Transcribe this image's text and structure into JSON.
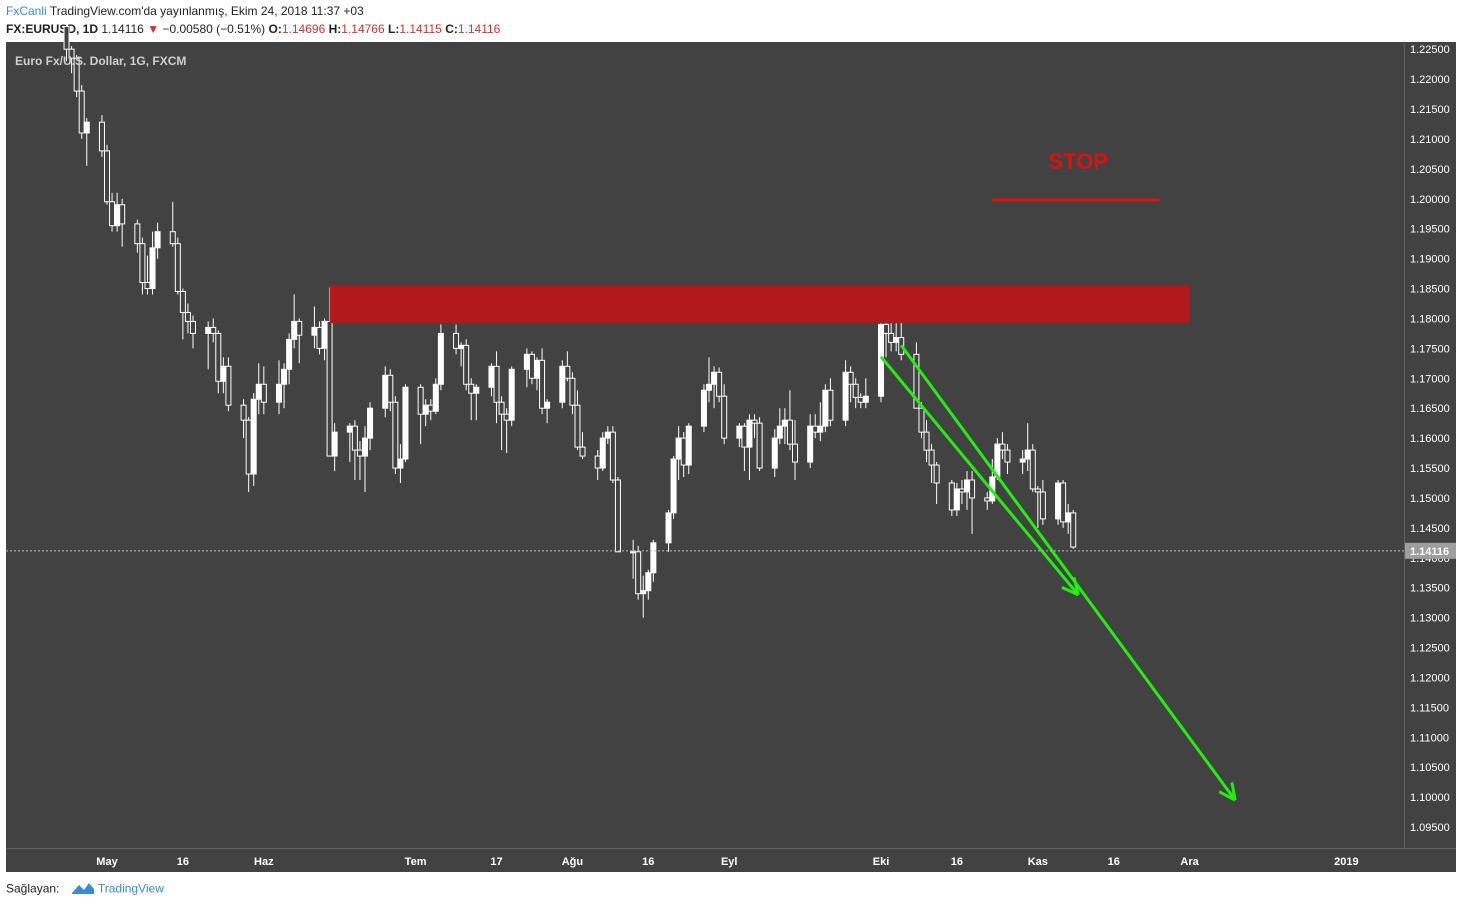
{
  "header": {
    "brand": "FxCanli",
    "published": "TradingView.com'da yayınlanmış, Ekim 24, 2018 11:37 +03",
    "symbol": "FX:EURUSD, 1D",
    "last": "1.14116",
    "change": "−0.00580 (−0.51%)",
    "o_label": "O:",
    "o_value": "1.14696",
    "h_label": "H:",
    "h_value": "1.14766",
    "l_label": "L:",
    "l_value": "1.14115",
    "c_label": "C:",
    "c_value": "1.14116"
  },
  "footer": {
    "provided_by": "Sağlayan:",
    "tv_label": "TradingView"
  },
  "colors": {
    "background": "#424242",
    "candle": "#ffffff",
    "resistance_zone": "#b3181a",
    "stop": "#e01010",
    "arrow": "#22ee11",
    "axis_text": "#222222"
  },
  "chart_data": {
    "type": "candlestick",
    "title": "Euro Fx/U.S. Dollar, 1G, FXCM",
    "ylim": [
      1.0915,
      1.2262
    ],
    "x_axis_ticks": [
      {
        "label": "May",
        "date": "2018-05-01"
      },
      {
        "label": "16",
        "date": "2018-05-16"
      },
      {
        "label": "Haz",
        "date": "2018-06-01"
      },
      {
        "label": "Tem",
        "date": "2018-07-01"
      },
      {
        "label": "17",
        "date": "2018-07-17"
      },
      {
        "label": "Ağu",
        "date": "2018-08-01"
      },
      {
        "label": "16",
        "date": "2018-08-16"
      },
      {
        "label": "Eyl",
        "date": "2018-09-01"
      },
      {
        "label": "Eki",
        "date": "2018-10-01"
      },
      {
        "label": "16",
        "date": "2018-10-16"
      },
      {
        "label": "Kas",
        "date": "2018-11-01"
      },
      {
        "label": "16",
        "date": "2018-11-16"
      },
      {
        "label": "Ara",
        "date": "2018-12-01"
      },
      {
        "label": "2019",
        "date": "2019-01-01"
      }
    ],
    "y_axis_ticks": [
      "1.22500",
      "1.22000",
      "1.21500",
      "1.21000",
      "1.20500",
      "1.20000",
      "1.19500",
      "1.19000",
      "1.18500",
      "1.18000",
      "1.17500",
      "1.17000",
      "1.16500",
      "1.16000",
      "1.15500",
      "1.15000",
      "1.14500",
      "1.14000",
      "1.13500",
      "1.13000",
      "1.12500",
      "1.12000",
      "1.11500",
      "1.11000",
      "1.10500",
      "1.10000",
      "1.09500"
    ],
    "last_price": "1.14116",
    "candles": [
      [
        "2018-04-23",
        1.2288,
        1.2302,
        1.223,
        1.225
      ],
      [
        "2018-04-24",
        1.225,
        1.2255,
        1.221,
        1.2235
      ],
      [
        "2018-04-25",
        1.2235,
        1.224,
        1.217,
        1.218
      ],
      [
        "2018-04-26",
        1.218,
        1.219,
        1.21,
        1.211
      ],
      [
        "2018-04-27",
        1.211,
        1.2135,
        1.2055,
        1.2128
      ],
      [
        "2018-04-30",
        1.2128,
        1.214,
        1.207,
        1.208
      ],
      [
        "2018-05-01",
        1.208,
        1.209,
        1.199,
        1.1995
      ],
      [
        "2018-05-02",
        1.1995,
        1.201,
        1.1945,
        1.1955
      ],
      [
        "2018-05-03",
        1.1955,
        1.201,
        1.1945,
        1.199
      ],
      [
        "2018-05-04",
        1.199,
        1.2,
        1.192,
        1.1958
      ],
      [
        "2018-05-07",
        1.1958,
        1.1965,
        1.191,
        1.1925
      ],
      [
        "2018-05-08",
        1.1925,
        1.1935,
        1.184,
        1.186
      ],
      [
        "2018-05-09",
        1.186,
        1.1905,
        1.184,
        1.185
      ],
      [
        "2018-05-10",
        1.185,
        1.1945,
        1.184,
        1.1918
      ],
      [
        "2018-05-11",
        1.1918,
        1.196,
        1.19,
        1.1945
      ],
      [
        "2018-05-14",
        1.1945,
        1.1995,
        1.192,
        1.1925
      ],
      [
        "2018-05-15",
        1.1925,
        1.1935,
        1.184,
        1.1845
      ],
      [
        "2018-05-16",
        1.1845,
        1.185,
        1.1765,
        1.181
      ],
      [
        "2018-05-17",
        1.181,
        1.1825,
        1.1775,
        1.1795
      ],
      [
        "2018-05-18",
        1.1795,
        1.1805,
        1.175,
        1.1775
      ],
      [
        "2018-05-21",
        1.1775,
        1.1795,
        1.1715,
        1.1785
      ],
      [
        "2018-05-22",
        1.1785,
        1.18,
        1.176,
        1.1775
      ],
      [
        "2018-05-23",
        1.1775,
        1.178,
        1.1675,
        1.1695
      ],
      [
        "2018-05-24",
        1.1695,
        1.1735,
        1.1675,
        1.172
      ],
      [
        "2018-05-25",
        1.172,
        1.1735,
        1.1645,
        1.1655
      ],
      [
        "2018-05-28",
        1.1655,
        1.1665,
        1.16,
        1.163
      ],
      [
        "2018-05-29",
        1.163,
        1.1635,
        1.151,
        1.154
      ],
      [
        "2018-05-30",
        1.154,
        1.1675,
        1.152,
        1.1665
      ],
      [
        "2018-05-31",
        1.1665,
        1.1725,
        1.164,
        1.169
      ],
      [
        "2018-06-01",
        1.169,
        1.172,
        1.164,
        1.166
      ],
      [
        "2018-06-04",
        1.166,
        1.173,
        1.164,
        1.169
      ],
      [
        "2018-06-05",
        1.169,
        1.1725,
        1.165,
        1.1715
      ],
      [
        "2018-06-06",
        1.1715,
        1.1775,
        1.169,
        1.1765
      ],
      [
        "2018-06-07",
        1.1765,
        1.184,
        1.175,
        1.1795
      ],
      [
        "2018-06-08",
        1.1795,
        1.18,
        1.1725,
        1.1772
      ],
      [
        "2018-06-11",
        1.1772,
        1.182,
        1.175,
        1.1785
      ],
      [
        "2018-06-12",
        1.1785,
        1.1795,
        1.174,
        1.175
      ],
      [
        "2018-06-13",
        1.175,
        1.18,
        1.173,
        1.1795
      ],
      [
        "2018-06-14",
        1.1795,
        1.1852,
        1.157,
        1.157
      ],
      [
        "2018-06-15",
        1.157,
        1.1625,
        1.1545,
        1.161
      ],
      [
        "2018-06-18",
        1.161,
        1.1625,
        1.156,
        1.162
      ],
      [
        "2018-06-19",
        1.162,
        1.163,
        1.153,
        1.158
      ],
      [
        "2018-06-20",
        1.158,
        1.1595,
        1.153,
        1.157
      ],
      [
        "2018-06-21",
        1.157,
        1.162,
        1.151,
        1.16
      ],
      [
        "2018-06-22",
        1.16,
        1.166,
        1.158,
        1.165
      ],
      [
        "2018-06-25",
        1.165,
        1.172,
        1.1635,
        1.1705
      ],
      [
        "2018-06-26",
        1.1705,
        1.1715,
        1.1645,
        1.166
      ],
      [
        "2018-06-27",
        1.166,
        1.167,
        1.154,
        1.155
      ],
      [
        "2018-06-28",
        1.155,
        1.159,
        1.1525,
        1.1565
      ],
      [
        "2018-06-29",
        1.1565,
        1.169,
        1.156,
        1.1685
      ],
      [
        "2018-07-02",
        1.1685,
        1.169,
        1.159,
        1.164
      ],
      [
        "2018-07-03",
        1.164,
        1.1665,
        1.162,
        1.1655
      ],
      [
        "2018-07-04",
        1.1655,
        1.1665,
        1.163,
        1.1645
      ],
      [
        "2018-07-05",
        1.1645,
        1.17,
        1.164,
        1.169
      ],
      [
        "2018-07-06",
        1.169,
        1.179,
        1.168,
        1.1775
      ],
      [
        "2018-07-09",
        1.1775,
        1.179,
        1.174,
        1.175
      ],
      [
        "2018-07-10",
        1.175,
        1.176,
        1.172,
        1.1755
      ],
      [
        "2018-07-11",
        1.1755,
        1.1765,
        1.168,
        1.169
      ],
      [
        "2018-07-12",
        1.169,
        1.17,
        1.163,
        1.1675
      ],
      [
        "2018-07-13",
        1.1675,
        1.169,
        1.163,
        1.1685
      ],
      [
        "2018-07-16",
        1.1685,
        1.1725,
        1.167,
        1.172
      ],
      [
        "2018-07-17",
        1.172,
        1.1745,
        1.1625,
        1.166
      ],
      [
        "2018-07-18",
        1.166,
        1.167,
        1.158,
        1.164
      ],
      [
        "2018-07-19",
        1.164,
        1.165,
        1.1575,
        1.163
      ],
      [
        "2018-07-20",
        1.163,
        1.172,
        1.162,
        1.1715
      ],
      [
        "2018-07-23",
        1.1715,
        1.175,
        1.1685,
        1.174
      ],
      [
        "2018-07-24",
        1.174,
        1.1745,
        1.169,
        1.17
      ],
      [
        "2018-07-25",
        1.17,
        1.1735,
        1.168,
        1.173
      ],
      [
        "2018-07-26",
        1.173,
        1.175,
        1.164,
        1.165
      ],
      [
        "2018-07-27",
        1.165,
        1.1665,
        1.1625,
        1.166
      ],
      [
        "2018-07-30",
        1.166,
        1.173,
        1.165,
        1.172
      ],
      [
        "2018-07-31",
        1.172,
        1.1745,
        1.1695,
        1.17
      ],
      [
        "2018-08-01",
        1.17,
        1.171,
        1.164,
        1.1655
      ],
      [
        "2018-08-02",
        1.1655,
        1.168,
        1.158,
        1.1585
      ],
      [
        "2018-08-03",
        1.1585,
        1.161,
        1.1565,
        1.157
      ],
      [
        "2018-08-06",
        1.157,
        1.158,
        1.153,
        1.155
      ],
      [
        "2018-08-07",
        1.155,
        1.161,
        1.1545,
        1.16
      ],
      [
        "2018-08-08",
        1.16,
        1.162,
        1.159,
        1.161
      ],
      [
        "2018-08-09",
        1.161,
        1.162,
        1.1525,
        1.153
      ],
      [
        "2018-08-10",
        1.153,
        1.1535,
        1.141,
        1.141
      ],
      [
        "2018-08-13",
        1.141,
        1.143,
        1.1365,
        1.141
      ],
      [
        "2018-08-14",
        1.141,
        1.142,
        1.133,
        1.134
      ],
      [
        "2018-08-15",
        1.134,
        1.137,
        1.13,
        1.1345
      ],
      [
        "2018-08-16",
        1.1345,
        1.138,
        1.133,
        1.1375
      ],
      [
        "2018-08-17",
        1.1375,
        1.143,
        1.136,
        1.1425
      ],
      [
        "2018-08-20",
        1.1425,
        1.148,
        1.141,
        1.1475
      ],
      [
        "2018-08-21",
        1.1475,
        1.157,
        1.1465,
        1.1565
      ],
      [
        "2018-08-22",
        1.1565,
        1.162,
        1.153,
        1.16
      ],
      [
        "2018-08-23",
        1.16,
        1.161,
        1.1535,
        1.1555
      ],
      [
        "2018-08-24",
        1.1555,
        1.1625,
        1.154,
        1.162
      ],
      [
        "2018-08-27",
        1.162,
        1.169,
        1.161,
        1.168
      ],
      [
        "2018-08-28",
        1.168,
        1.1735,
        1.166,
        1.169
      ],
      [
        "2018-08-29",
        1.169,
        1.172,
        1.165,
        1.171
      ],
      [
        "2018-08-30",
        1.171,
        1.1718,
        1.166,
        1.167
      ],
      [
        "2018-08-31",
        1.167,
        1.169,
        1.159,
        1.16
      ],
      [
        "2018-09-03",
        1.16,
        1.1625,
        1.1585,
        1.162
      ],
      [
        "2018-09-04",
        1.162,
        1.1625,
        1.1545,
        1.1585
      ],
      [
        "2018-09-05",
        1.1585,
        1.164,
        1.153,
        1.163
      ],
      [
        "2018-09-06",
        1.163,
        1.164,
        1.16,
        1.1625
      ],
      [
        "2018-09-07",
        1.1625,
        1.1635,
        1.1545,
        1.155
      ],
      [
        "2018-09-10",
        1.155,
        1.1615,
        1.1535,
        1.16
      ],
      [
        "2018-09-11",
        1.16,
        1.165,
        1.159,
        1.162
      ],
      [
        "2018-09-12",
        1.162,
        1.165,
        1.159,
        1.163
      ],
      [
        "2018-09-13",
        1.163,
        1.168,
        1.158,
        1.159
      ],
      [
        "2018-09-14",
        1.159,
        1.163,
        1.153,
        1.156
      ],
      [
        "2018-09-17",
        1.156,
        1.164,
        1.155,
        1.162
      ],
      [
        "2018-09-18",
        1.162,
        1.164,
        1.16,
        1.161
      ],
      [
        "2018-09-19",
        1.161,
        1.166,
        1.1595,
        1.162
      ],
      [
        "2018-09-20",
        1.162,
        1.169,
        1.161,
        1.168
      ],
      [
        "2018-09-21",
        1.168,
        1.17,
        1.162,
        1.163
      ],
      [
        "2018-09-24",
        1.163,
        1.173,
        1.162,
        1.171
      ],
      [
        "2018-09-25",
        1.171,
        1.172,
        1.166,
        1.169
      ],
      [
        "2018-09-26",
        1.169,
        1.17,
        1.165,
        1.1668
      ],
      [
        "2018-09-27",
        1.1668,
        1.1675,
        1.165,
        1.166
      ],
      [
        "2018-09-28",
        1.166,
        1.17,
        1.165,
        1.167
      ],
      [
        "2018-10-01",
        1.167,
        1.1815,
        1.166,
        1.179
      ],
      [
        "2018-10-02",
        1.179,
        1.181,
        1.1735,
        1.1775
      ],
      [
        "2018-10-03",
        1.1775,
        1.1818,
        1.1745,
        1.176
      ],
      [
        "2018-10-04",
        1.176,
        1.18,
        1.1745,
        1.1768
      ],
      [
        "2018-10-05",
        1.1768,
        1.18,
        1.173,
        1.174
      ],
      [
        "2018-10-08",
        1.174,
        1.176,
        1.165,
        1.165
      ],
      [
        "2018-10-09",
        1.165,
        1.166,
        1.16,
        1.161
      ],
      [
        "2018-10-10",
        1.161,
        1.163,
        1.156,
        1.158
      ],
      [
        "2018-10-11",
        1.158,
        1.159,
        1.1525,
        1.1555
      ],
      [
        "2018-10-12",
        1.1555,
        1.156,
        1.149,
        1.1525
      ],
      [
        "2018-10-15",
        1.1525,
        1.153,
        1.147,
        1.148
      ],
      [
        "2018-10-16",
        1.148,
        1.1525,
        1.147,
        1.1515
      ],
      [
        "2018-10-17",
        1.1515,
        1.153,
        1.149,
        1.151
      ],
      [
        "2018-10-18",
        1.151,
        1.1545,
        1.148,
        1.153
      ],
      [
        "2018-10-19",
        1.153,
        1.1545,
        1.144,
        1.15
      ],
      [
        "2018-10-22",
        1.15,
        1.151,
        1.148,
        1.1495
      ],
      [
        "2018-10-23",
        1.1495,
        1.1565,
        1.149,
        1.1535
      ],
      [
        "2018-10-24",
        1.1535,
        1.16,
        1.153,
        1.159
      ],
      [
        "2018-10-25",
        1.159,
        1.161,
        1.1565,
        1.158
      ],
      [
        "2018-10-26",
        1.158,
        1.159,
        1.154,
        1.156
      ],
      [
        "2018-10-29",
        1.156,
        1.158,
        1.154,
        1.1565
      ],
      [
        "2018-10-30",
        1.1565,
        1.1625,
        1.1545,
        1.158
      ],
      [
        "2018-10-31",
        1.158,
        1.159,
        1.151,
        1.1515
      ],
      [
        "2018-11-01",
        1.1515,
        1.152,
        1.145,
        1.151
      ],
      [
        "2018-11-02",
        1.151,
        1.153,
        1.1455,
        1.1465
      ],
      [
        "2018-11-05",
        1.1465,
        1.153,
        1.1455,
        1.1525
      ],
      [
        "2018-11-06",
        1.1525,
        1.153,
        1.145,
        1.146
      ],
      [
        "2018-11-07",
        1.146,
        1.149,
        1.144,
        1.1475
      ],
      [
        "2018-11-08",
        1.1475,
        1.148,
        1.1415,
        1.1418
      ]
    ],
    "annotations": [
      {
        "type": "zone",
        "label": "",
        "y_low": 1.1792,
        "y_high": 1.1855,
        "x_start": "2018-06-14",
        "x_end": "2018-12-01"
      },
      {
        "type": "text",
        "label": "STOP",
        "y": 1.205,
        "x": "2018-11-09"
      },
      {
        "type": "hline",
        "label": "",
        "y": 1.1998,
        "x_start": "2018-10-23",
        "x_end": "2018-11-25"
      },
      {
        "type": "arrow",
        "label": "",
        "from": {
          "x": "2018-10-01",
          "y": 1.1736
        },
        "to": {
          "x": "2018-11-09",
          "y": 1.1338
        }
      },
      {
        "type": "arrow",
        "label": "",
        "from": {
          "x": "2018-10-05",
          "y": 1.1755
        },
        "to": {
          "x": "2018-12-10",
          "y": 1.0995
        }
      }
    ]
  }
}
